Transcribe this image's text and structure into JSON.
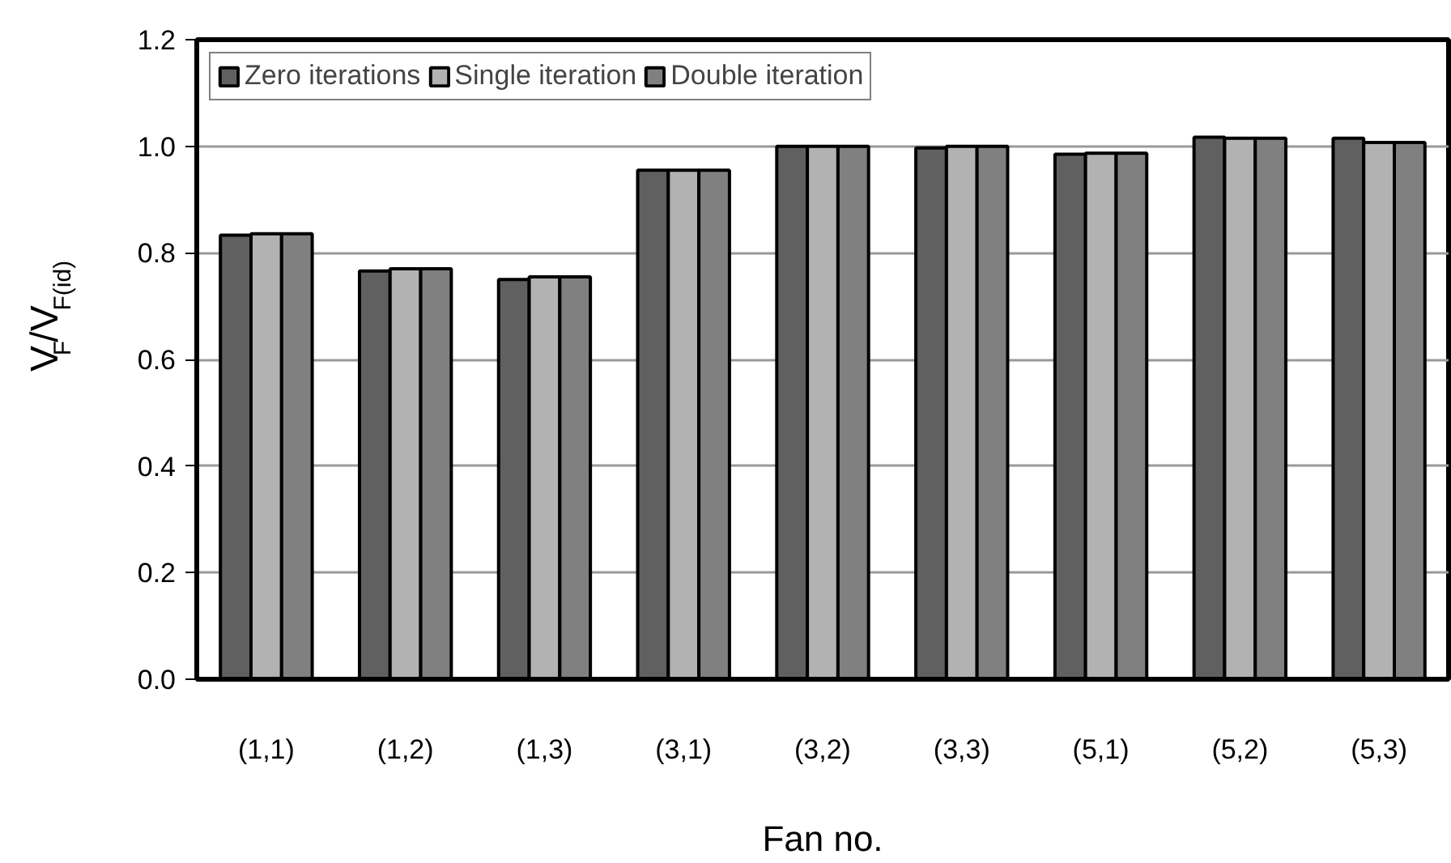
{
  "chart_data": {
    "type": "bar",
    "xlabel": "Fan no.",
    "ylabel": "V$_{F}$/V$_{F(id)}$",
    "categories": [
      "(1,1)",
      "(1,2)",
      "(1,3)",
      "(3,1)",
      "(3,2)",
      "(3,3)",
      "(5,1)",
      "(5,2)",
      "(5,3)"
    ],
    "series": [
      {
        "name": "Zero iterations",
        "color": "#606060",
        "values": [
          0.833,
          0.766,
          0.75,
          0.955,
          1.0,
          0.997,
          0.985,
          1.017,
          1.015
        ]
      },
      {
        "name": "Single iteration",
        "color": "#b2b2b2",
        "values": [
          0.836,
          0.77,
          0.755,
          0.955,
          1.0,
          1.0,
          0.987,
          1.015,
          1.007
        ]
      },
      {
        "name": "Double iteration",
        "color": "#808080",
        "values": [
          0.836,
          0.77,
          0.755,
          0.955,
          1.0,
          1.0,
          0.987,
          1.015,
          1.007
        ]
      }
    ],
    "ylim": [
      0,
      1.2
    ],
    "yticks": [
      {
        "value": 0,
        "label": "0.0"
      },
      0.2,
      0.4,
      0.6,
      0.8,
      {
        "value": 1,
        "label": "1.0"
      },
      1.2
    ],
    "grid": "y",
    "legend": "top left"
  }
}
